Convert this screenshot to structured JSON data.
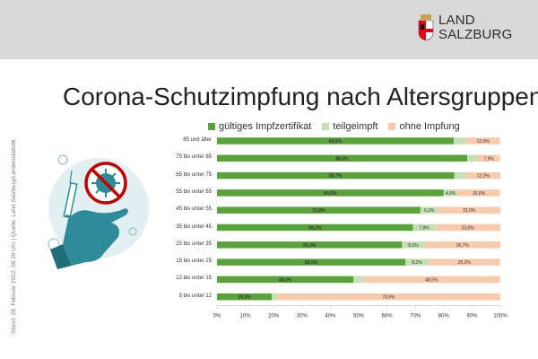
{
  "logo": {
    "line1": "LAND",
    "line2": "SALZBURG"
  },
  "side_note": "Stand: 28. Februar 2022, 08.30 Uhr  |  Quelle: Land Salzburg/Landesstatistik",
  "colors": {
    "geimpft": "#5aa33b",
    "teilgeimpft": "#c5e0b3",
    "ohne": "#f8cbad",
    "illustration": "#2e8b99",
    "virus": "#c00000"
  },
  "chart_data": {
    "type": "bar",
    "orientation": "horizontal",
    "stacked": true,
    "title": "Corona-Schutzimpfung nach Altersgruppen",
    "categories": [
      "85 und älter",
      "75 bis unter 85",
      "65 bis unter 75",
      "55 bis unter 65",
      "45 bis unter 55",
      "35 bis unter 45",
      "25 bis unter 35",
      "15 bis unter 25",
      "12 bis unter 15",
      "5 bis unter 12"
    ],
    "series": [
      {
        "name": "gültiges Impfzertifikat",
        "values": [
          83.6,
          88.3,
          83.7,
          80.0,
          71.8,
          69.2,
          65.3,
          66.5,
          48.2,
          19.3
        ],
        "labels": [
          "83,6%",
          "88,3%",
          "83,7%",
          "80,0%",
          "71,8%",
          "69,2%",
          "65,3%",
          "66,5%",
          "48,2%",
          "19,3%"
        ]
      },
      {
        "name": "teilgeimpft",
        "values": [
          4.3,
          3.7,
          4.1,
          4.9,
          6.2,
          7.8,
          8.0,
          8.2,
          3.3,
          1.8
        ],
        "labels": [
          "4,3%",
          "3,7%",
          "4,1%",
          "4,9%",
          "6,2%",
          "7,8%",
          "8,0%",
          "8,2%",
          "3,3%",
          "1,8%"
        ]
      },
      {
        "name": "ohne Impfung",
        "values": [
          12.0,
          7.9,
          12.2,
          15.0,
          22.0,
          23.0,
          26.7,
          25.2,
          48.5,
          78.9
        ],
        "labels": [
          "12,0%",
          "7,9%",
          "12,2%",
          "15,0%",
          "22,0%",
          "23,0%",
          "26,7%",
          "25,2%",
          "48,5%",
          "78,9%"
        ]
      }
    ],
    "xlim": [
      0,
      100
    ],
    "x_ticks": [
      "0%",
      "10%",
      "20%",
      "30%",
      "40%",
      "50%",
      "60%",
      "70%",
      "80%",
      "90%",
      "100%"
    ],
    "legend_position": "top",
    "grid": false
  }
}
